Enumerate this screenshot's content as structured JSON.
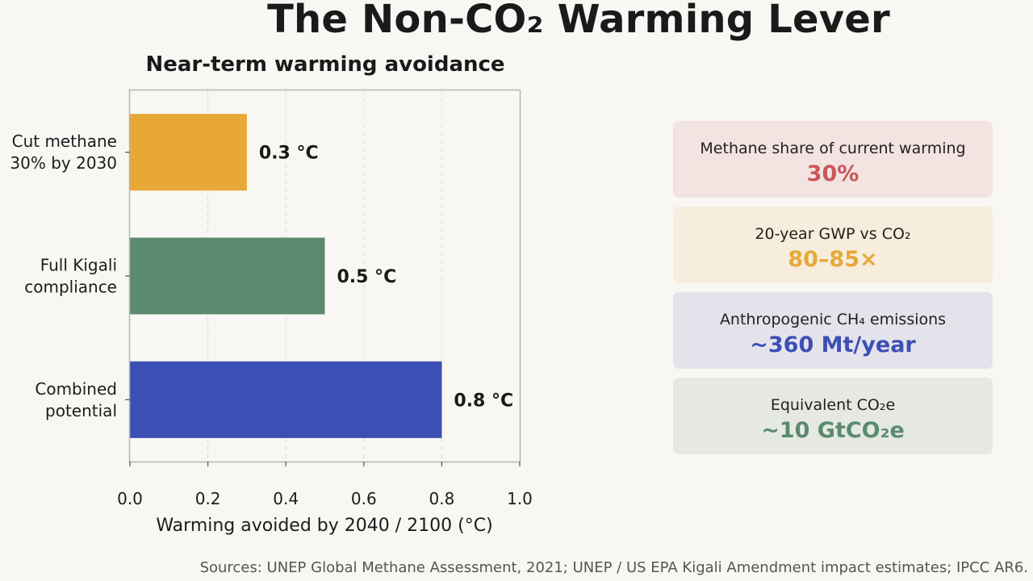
{
  "title": "The Non-CO₂ Warming Lever",
  "chart_data": {
    "type": "bar",
    "orientation": "horizontal",
    "title": "Near-term warming avoidance",
    "xlabel": "Warming avoided by 2040 / 2100 (°C)",
    "ylabel": "",
    "xlim": [
      0,
      1.0
    ],
    "xticks": [
      "0.0",
      "0.2",
      "0.4",
      "0.6",
      "0.8",
      "1.0"
    ],
    "grid": "vertical dashed",
    "categories": [
      [
        "Cut methane",
        "30% by 2030"
      ],
      [
        "Full Kigali",
        "compliance"
      ],
      [
        "Combined",
        "potential"
      ]
    ],
    "values": [
      0.3,
      0.5,
      0.8
    ],
    "value_labels": [
      "0.3 °C",
      "0.5 °C",
      "0.8 °C"
    ],
    "colors": [
      "#e8a838",
      "#5b8a6e",
      "#3c4fb4"
    ]
  },
  "stats": [
    {
      "label": "Methane share of current warming",
      "value": "30%",
      "bg": "#f3e3e1",
      "color": "#c9575a"
    },
    {
      "label": "20-year GWP vs CO₂",
      "value": "80–85×",
      "bg": "#f6eddc",
      "color": "#e8a838"
    },
    {
      "label": "Anthropogenic CH₄ emissions",
      "value": "~360 Mt/year",
      "bg": "#e4e3ec",
      "color": "#3c4fb4"
    },
    {
      "label": "Equivalent CO₂e",
      "value": "~10 GtCO₂e",
      "bg": "#e5e9e2",
      "color": "#5b8a6e"
    }
  ],
  "sources": "Sources: UNEP Global Methane Assessment, 2021; UNEP / US EPA Kigali Amendment impact estimates; IPCC AR6."
}
